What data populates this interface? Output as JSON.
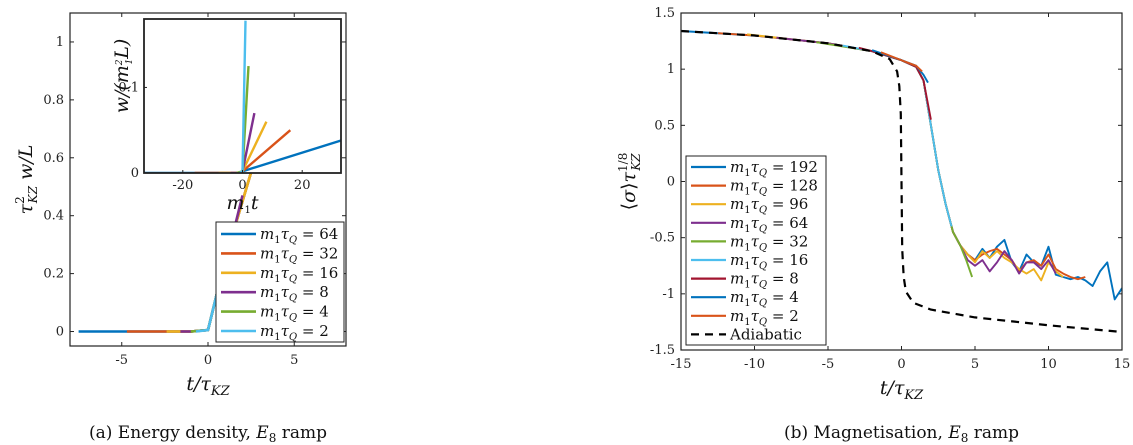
{
  "chart_data": [
    {
      "type": "line",
      "caption": "(a) Energy density, E8 ramp",
      "xlabel": "t/τKZ",
      "ylabel": "τKZ² w/L",
      "xlim": [
        -8,
        8
      ],
      "ylim": [
        -0.05,
        1.1
      ],
      "xticks": [
        -5,
        0,
        5
      ],
      "yticks": [
        0,
        0.2,
        0.4,
        0.6,
        0.8,
        1
      ],
      "xtick_labels": [
        "-5",
        "0",
        "5"
      ],
      "ytick_labels": [
        "0",
        "0.2",
        "0.4",
        "0.6",
        "0.8",
        "1"
      ],
      "legend_position": "bottom-right",
      "series": [
        {
          "name": "m₁τQ = 64",
          "color": "#0072BD",
          "points": [
            [
              -7.5,
              0
            ],
            [
              -4.7,
              0
            ],
            [
              -1,
              0
            ],
            [
              0,
              0.005
            ],
            [
              0.8,
              0.2
            ],
            [
              1.5,
              0.35
            ],
            [
              2.5,
              0.55
            ],
            [
              3.2,
              0.66
            ],
            [
              4.0,
              0.74
            ],
            [
              4.5,
              0.8
            ],
            [
              5,
              0.83
            ],
            [
              6,
              0.93
            ],
            [
              7,
              1.0
            ],
            [
              7.5,
              1.04
            ]
          ]
        },
        {
          "name": "m₁τQ = 32",
          "color": "#D95319",
          "points": [
            [
              -4.7,
              0
            ],
            [
              -2.4,
              0
            ],
            [
              -1,
              0
            ],
            [
              0,
              0.005
            ],
            [
              0.8,
              0.2
            ],
            [
              1.5,
              0.35
            ],
            [
              2.5,
              0.55
            ],
            [
              3.2,
              0.66
            ],
            [
              4.0,
              0.74
            ],
            [
              4.5,
              0.8
            ],
            [
              5,
              0.83
            ]
          ]
        },
        {
          "name": "m₁τQ = 16",
          "color": "#EDB120",
          "points": [
            [
              -2.4,
              0
            ],
            [
              -1,
              0
            ],
            [
              0,
              0.005
            ],
            [
              0.8,
              0.2
            ],
            [
              1.5,
              0.35
            ],
            [
              2.5,
              0.55
            ],
            [
              3.2,
              0.66
            ]
          ]
        },
        {
          "name": "m₁τQ = 8",
          "color": "#7E2F8E",
          "points": [
            [
              -1.6,
              0
            ],
            [
              -1,
              0
            ],
            [
              0,
              0.005
            ],
            [
              0.8,
              0.2
            ],
            [
              1.5,
              0.35
            ],
            [
              2.0,
              0.47
            ]
          ]
        },
        {
          "name": "m₁τQ = 4",
          "color": "#77AC30",
          "points": [
            [
              -1.0,
              0
            ],
            [
              0,
              0.005
            ],
            [
              0.8,
              0.2
            ],
            [
              1.2,
              0.27
            ]
          ]
        },
        {
          "name": "m₁τQ = 2",
          "color": "#4DBEEE",
          "points": [
            [
              -0.7,
              0
            ],
            [
              0,
              0.005
            ],
            [
              0.8,
              0.2
            ]
          ]
        }
      ],
      "inset": {
        "xlabel": "m₁t",
        "ylabel": "w/(m₁²L)",
        "xlim": [
          -33,
          33
        ],
        "ylim": [
          0,
          0.18
        ],
        "xticks": [
          -20,
          0,
          20
        ],
        "yticks": [
          0,
          0.1
        ],
        "xtick_labels": [
          "-20",
          "0",
          "20"
        ],
        "ytick_labels": [
          "0",
          "0.1"
        ],
        "series": [
          {
            "color": "#0072BD",
            "points": [
              [
                -33,
                0
              ],
              [
                -1,
                0
              ],
              [
                0,
                0.002
              ],
              [
                33,
                0.038
              ]
            ]
          },
          {
            "color": "#D95319",
            "points": [
              [
                -16,
                0
              ],
              [
                -1,
                0
              ],
              [
                0,
                0.002
              ],
              [
                16,
                0.05
              ]
            ]
          },
          {
            "color": "#EDB120",
            "points": [
              [
                -8,
                0
              ],
              [
                -1,
                0
              ],
              [
                0,
                0.002
              ],
              [
                8,
                0.06
              ]
            ]
          },
          {
            "color": "#7E2F8E",
            "points": [
              [
                -4,
                0
              ],
              [
                -1,
                0
              ],
              [
                0,
                0.002
              ],
              [
                4,
                0.07
              ]
            ]
          },
          {
            "color": "#77AC30",
            "points": [
              [
                -2,
                0
              ],
              [
                0,
                0.002
              ],
              [
                2,
                0.125
              ]
            ]
          },
          {
            "color": "#4DBEEE",
            "points": [
              [
                -1,
                0
              ],
              [
                0,
                0.002
              ],
              [
                1,
                0.178
              ]
            ]
          }
        ]
      }
    },
    {
      "type": "line",
      "caption": "(b) Magnetisation, E8 ramp",
      "xlabel": "t/τKZ",
      "ylabel": "⟨σ⟩τKZ^(1/8)",
      "xlim": [
        -15,
        15
      ],
      "ylim": [
        -1.5,
        1.5
      ],
      "xticks": [
        -15,
        -10,
        -5,
        0,
        5,
        10,
        15
      ],
      "yticks": [
        -1.5,
        -1,
        -0.5,
        0,
        0.5,
        1,
        1.5
      ],
      "xtick_labels": [
        "-15",
        "-10",
        "-5",
        "0",
        "5",
        "10",
        "15"
      ],
      "ytick_labels": [
        "-1.5",
        "-1",
        "-0.5",
        "0",
        "0.5",
        "1",
        "1.5"
      ],
      "legend_position": "bottom-left",
      "series": [
        {
          "name": "m₁τQ = 192",
          "color": "#0072BD",
          "points": [
            [
              -15,
              1.34
            ],
            [
              -10,
              1.3
            ],
            [
              -5,
              1.23
            ],
            [
              -2,
              1.16
            ],
            [
              0,
              1.08
            ],
            [
              1,
              1.02
            ],
            [
              1.5,
              0.9
            ],
            [
              2,
              0.5
            ],
            [
              2.5,
              0.1
            ],
            [
              3,
              -0.2
            ],
            [
              3.5,
              -0.45
            ],
            [
              4,
              -0.57
            ],
            [
              4.5,
              -0.65
            ],
            [
              5,
              -0.7
            ],
            [
              5.5,
              -0.6
            ],
            [
              6,
              -0.68
            ],
            [
              6.5,
              -0.58
            ],
            [
              7,
              -0.52
            ],
            [
              7.5,
              -0.72
            ],
            [
              8,
              -0.8
            ],
            [
              8.5,
              -0.65
            ],
            [
              9,
              -0.72
            ],
            [
              9.5,
              -0.75
            ],
            [
              10,
              -0.58
            ],
            [
              10.5,
              -0.83
            ],
            [
              11,
              -0.85
            ],
            [
              11.5,
              -0.87
            ],
            [
              12,
              -0.85
            ],
            [
              12.5,
              -0.88
            ],
            [
              13,
              -0.93
            ],
            [
              13.5,
              -0.8
            ],
            [
              14,
              -0.72
            ],
            [
              14.5,
              -1.05
            ],
            [
              15,
              -0.95
            ]
          ]
        },
        {
          "name": "m₁τQ = 128",
          "color": "#D95319",
          "points": [
            [
              -12.5,
              1.32
            ],
            [
              -10,
              1.3
            ],
            [
              -5,
              1.23
            ],
            [
              -2,
              1.16
            ],
            [
              0,
              1.08
            ],
            [
              1,
              1.02
            ],
            [
              1.5,
              0.9
            ],
            [
              2,
              0.5
            ],
            [
              2.5,
              0.1
            ],
            [
              3,
              -0.2
            ],
            [
              3.5,
              -0.45
            ],
            [
              4,
              -0.57
            ],
            [
              4.5,
              -0.65
            ],
            [
              5,
              -0.7
            ],
            [
              5.5,
              -0.65
            ],
            [
              6,
              -0.62
            ],
            [
              6.5,
              -0.6
            ],
            [
              7,
              -0.65
            ],
            [
              7.5,
              -0.7
            ],
            [
              8,
              -0.8
            ],
            [
              8.5,
              -0.72
            ],
            [
              9,
              -0.7
            ],
            [
              9.5,
              -0.75
            ],
            [
              10,
              -0.65
            ],
            [
              10.5,
              -0.78
            ],
            [
              11,
              -0.82
            ],
            [
              11.5,
              -0.85
            ],
            [
              12,
              -0.87
            ],
            [
              12.5,
              -0.85
            ]
          ]
        },
        {
          "name": "m₁τQ = 96",
          "color": "#EDB120",
          "points": [
            [
              -10.5,
              1.31
            ],
            [
              -5,
              1.23
            ],
            [
              -2,
              1.16
            ],
            [
              0,
              1.08
            ],
            [
              1,
              1.02
            ],
            [
              1.5,
              0.9
            ],
            [
              2,
              0.5
            ],
            [
              2.5,
              0.1
            ],
            [
              3,
              -0.2
            ],
            [
              3.5,
              -0.45
            ],
            [
              4,
              -0.57
            ],
            [
              4.5,
              -0.65
            ],
            [
              5,
              -0.72
            ],
            [
              5.5,
              -0.62
            ],
            [
              6,
              -0.68
            ],
            [
              6.5,
              -0.62
            ],
            [
              7,
              -0.68
            ],
            [
              7.5,
              -0.72
            ],
            [
              8,
              -0.78
            ],
            [
              8.5,
              -0.82
            ],
            [
              9,
              -0.78
            ],
            [
              9.5,
              -0.88
            ],
            [
              10,
              -0.72
            ],
            [
              10.5,
              -0.8
            ],
            [
              11,
              -0.85
            ]
          ]
        },
        {
          "name": "m₁τQ = 64",
          "color": "#7E2F8E",
          "points": [
            [
              -8.5,
              1.28
            ],
            [
              -5,
              1.23
            ],
            [
              -2,
              1.16
            ],
            [
              0,
              1.08
            ],
            [
              1,
              1.02
            ],
            [
              1.5,
              0.9
            ],
            [
              2,
              0.5
            ],
            [
              2.5,
              0.1
            ],
            [
              3,
              -0.2
            ],
            [
              3.5,
              -0.45
            ],
            [
              4,
              -0.57
            ],
            [
              4.5,
              -0.7
            ],
            [
              5,
              -0.75
            ],
            [
              5.5,
              -0.7
            ],
            [
              6,
              -0.8
            ],
            [
              6.5,
              -0.72
            ],
            [
              7,
              -0.62
            ],
            [
              7.5,
              -0.7
            ],
            [
              8,
              -0.82
            ],
            [
              8.5,
              -0.72
            ],
            [
              9,
              -0.72
            ],
            [
              9.5,
              -0.78
            ],
            [
              10,
              -0.7
            ],
            [
              10.5,
              -0.82
            ]
          ]
        },
        {
          "name": "m₁τQ = 32",
          "color": "#77AC30",
          "points": [
            [
              -5.8,
              1.24
            ],
            [
              -2,
              1.16
            ],
            [
              0,
              1.08
            ],
            [
              1,
              1.02
            ],
            [
              1.5,
              0.9
            ],
            [
              2,
              0.5
            ],
            [
              2.5,
              0.1
            ],
            [
              3,
              -0.2
            ],
            [
              3.5,
              -0.45
            ],
            [
              4,
              -0.57
            ],
            [
              4.4,
              -0.7
            ],
            [
              4.8,
              -0.85
            ]
          ]
        },
        {
          "name": "m₁τQ = 16",
          "color": "#4DBEEE",
          "points": [
            [
              -4,
              1.21
            ],
            [
              -2,
              1.16
            ],
            [
              0,
              1.08
            ],
            [
              1,
              1.02
            ],
            [
              1.5,
              0.9
            ],
            [
              2,
              0.5
            ],
            [
              2.5,
              0.1
            ],
            [
              3,
              -0.2
            ],
            [
              3.4,
              -0.4
            ]
          ]
        },
        {
          "name": "m₁τQ = 8",
          "color": "#A2142F",
          "points": [
            [
              -2.9,
              1.19
            ],
            [
              -2,
              1.16
            ],
            [
              0,
              1.08
            ],
            [
              1,
              1.02
            ],
            [
              1.5,
              0.9
            ],
            [
              2,
              0.55
            ]
          ]
        },
        {
          "name": "m₁τQ = 4",
          "color": "#0072BD",
          "points": [
            [
              -2.0,
              1.17
            ],
            [
              0,
              1.08
            ],
            [
              1,
              1.03
            ],
            [
              1.5,
              0.95
            ],
            [
              1.8,
              0.88
            ]
          ]
        },
        {
          "name": "m₁τQ = 2",
          "color": "#D95319",
          "points": [
            [
              -1.4,
              1.15
            ],
            [
              0,
              1.08
            ],
            [
              1,
              1.03
            ],
            [
              1.4,
              0.98
            ]
          ]
        },
        {
          "name": "Adiabatic",
          "color": "#000000",
          "dashed": true,
          "points": [
            [
              -15,
              1.34
            ],
            [
              -10,
              1.3
            ],
            [
              -5,
              1.23
            ],
            [
              -2,
              1.16
            ],
            [
              -0.8,
              1.09
            ],
            [
              -0.3,
              0.98
            ],
            [
              -0.15,
              0.85
            ],
            [
              -0.05,
              0.6
            ],
            [
              0,
              0
            ],
            [
              0.05,
              -0.6
            ],
            [
              0.15,
              -0.85
            ],
            [
              0.3,
              -0.98
            ],
            [
              0.8,
              -1.08
            ],
            [
              2,
              -1.14
            ],
            [
              5,
              -1.21
            ],
            [
              10,
              -1.28
            ],
            [
              15,
              -1.34
            ]
          ]
        }
      ]
    }
  ]
}
